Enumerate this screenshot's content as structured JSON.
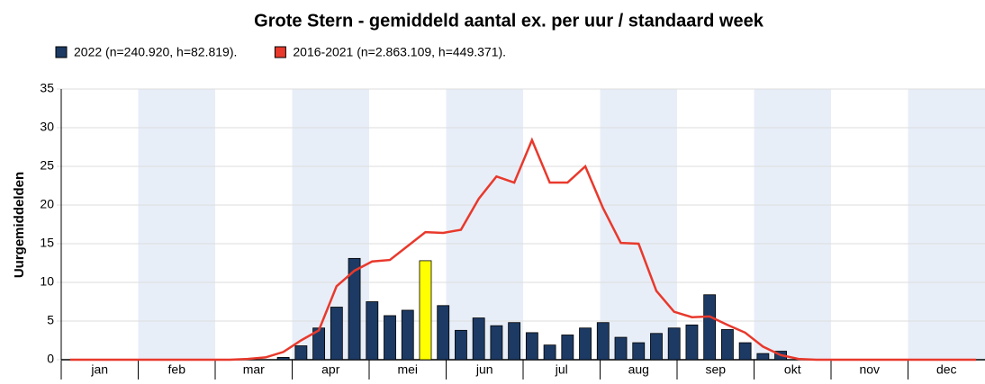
{
  "chart_data": {
    "type": "bar-line",
    "title": "Grote Stern - gemiddeld aantal ex. per uur / standaard week",
    "ylabel": "Uurgemiddelden",
    "months": [
      "jan",
      "feb",
      "mar",
      "apr",
      "mei",
      "jun",
      "jul",
      "aug",
      "sep",
      "okt",
      "nov",
      "dec"
    ],
    "band_color": "#e8eef8",
    "highlight_index": 20,
    "highlight_color": "#ffff00",
    "ylim": [
      0,
      35
    ],
    "yticks": [
      0,
      5,
      10,
      15,
      20,
      25,
      30,
      35
    ],
    "series": [
      {
        "name": "2022 (n=240.920, h=82.819).",
        "kind": "bar",
        "color": "#1c3a64",
        "values": [
          0,
          0,
          0,
          0,
          0,
          0,
          0,
          0,
          0,
          0,
          0,
          0,
          0.3,
          1.8,
          4.1,
          6.8,
          13.1,
          7.5,
          5.7,
          6.4,
          12.8,
          7.0,
          3.8,
          5.4,
          4.4,
          4.8,
          3.5,
          1.9,
          3.2,
          4.1,
          4.8,
          2.9,
          2.2,
          3.4,
          4.1,
          4.5,
          8.4,
          3.9,
          2.2,
          0.8,
          1.1,
          0,
          0,
          0,
          0,
          0,
          0,
          0,
          0,
          0,
          0,
          0
        ]
      },
      {
        "name": "2016-2021 (n=2.863.109, h=449.371).",
        "kind": "line",
        "color": "#e8392c",
        "values": [
          0,
          0,
          0,
          0,
          0,
          0,
          0,
          0,
          0,
          0,
          0.1,
          0.3,
          1.0,
          2.5,
          3.8,
          9.5,
          11.5,
          12.7,
          12.9,
          14.7,
          16.5,
          16.4,
          16.8,
          20.8,
          23.7,
          22.9,
          28.4,
          22.9,
          22.9,
          25.0,
          19.6,
          15.1,
          15.0,
          8.9,
          6.2,
          5.5,
          5.6,
          4.5,
          3.5,
          1.7,
          0.6,
          0.1,
          0,
          0,
          0,
          0,
          0,
          0,
          0,
          0,
          0,
          0
        ]
      }
    ]
  }
}
